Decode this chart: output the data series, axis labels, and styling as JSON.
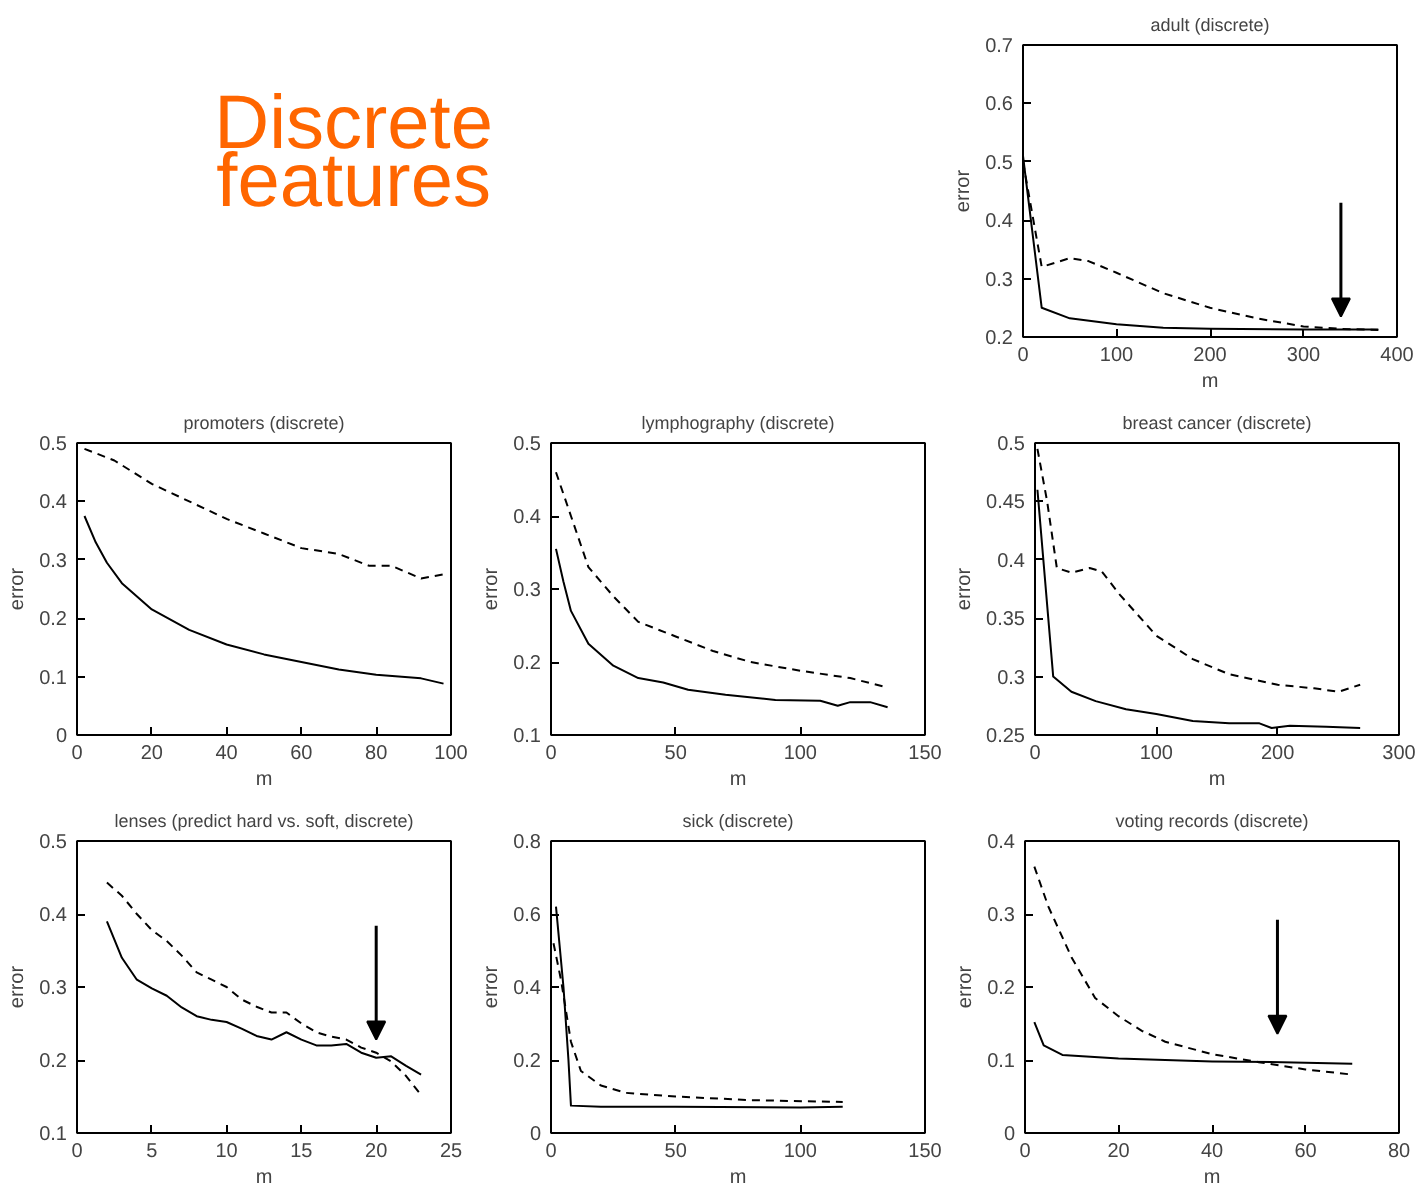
{
  "chart_data": [
    {
      "type": "other",
      "annotations": [
        "Discrete",
        "features"
      ],
      "color": "#ff6600"
    },
    {
      "type": "line",
      "title": "adult (discrete)",
      "xlabel": "m",
      "ylabel": "error",
      "xlim": [
        0,
        400
      ],
      "ylim": [
        0.2,
        0.7
      ],
      "xticks": [
        0,
        100,
        200,
        300,
        400
      ],
      "yticks": [
        0.2,
        0.3,
        0.4,
        0.5,
        0.6,
        0.7
      ],
      "series": [
        {
          "color": "#000000",
          "line_style": "solid",
          "x": [
            0,
            20,
            50,
            100,
            150,
            200,
            300,
            380
          ],
          "values": [
            0.51,
            0.25,
            0.232,
            0.222,
            0.216,
            0.214,
            0.213,
            0.213
          ]
        },
        {
          "color": "#000000",
          "line_style": "dashed",
          "x": [
            0,
            20,
            50,
            70,
            100,
            150,
            200,
            250,
            300,
            340,
            380
          ],
          "values": [
            0.5,
            0.32,
            0.335,
            0.33,
            0.31,
            0.275,
            0.25,
            0.232,
            0.218,
            0.214,
            0.212
          ]
        }
      ]
    },
    {
      "type": "line",
      "title": "promoters (discrete)",
      "xlabel": "m",
      "ylabel": "error",
      "xlim": [
        0,
        100
      ],
      "ylim": [
        0,
        0.5
      ],
      "xticks": [
        0,
        20,
        40,
        60,
        80,
        100
      ],
      "yticks": [
        0,
        0.1,
        0.2,
        0.3,
        0.4,
        0.5
      ],
      "series": [
        {
          "color": "#000000",
          "line_style": "solid",
          "x": [
            2,
            5,
            8,
            12,
            20,
            30,
            40,
            50,
            60,
            70,
            80,
            92,
            98
          ],
          "values": [
            0.375,
            0.33,
            0.295,
            0.26,
            0.215,
            0.18,
            0.155,
            0.138,
            0.125,
            0.112,
            0.103,
            0.097,
            0.088
          ]
        },
        {
          "color": "#000000",
          "line_style": "dashed",
          "x": [
            2,
            10,
            20,
            30,
            40,
            50,
            60,
            70,
            78,
            84,
            92,
            98
          ],
          "values": [
            0.49,
            0.47,
            0.43,
            0.4,
            0.37,
            0.345,
            0.32,
            0.31,
            0.29,
            0.29,
            0.268,
            0.275
          ]
        }
      ]
    },
    {
      "type": "line",
      "title": "lymphography (discrete)",
      "xlabel": "m",
      "ylabel": "error",
      "xlim": [
        0,
        150
      ],
      "ylim": [
        0.1,
        0.5
      ],
      "xticks": [
        0,
        50,
        100,
        150
      ],
      "yticks": [
        0.1,
        0.2,
        0.3,
        0.4,
        0.5
      ],
      "series": [
        {
          "color": "#000000",
          "line_style": "solid",
          "x": [
            2,
            5,
            8,
            15,
            25,
            35,
            45,
            55,
            70,
            90,
            108,
            115,
            120,
            128,
            135
          ],
          "values": [
            0.355,
            0.31,
            0.27,
            0.225,
            0.195,
            0.178,
            0.172,
            0.162,
            0.155,
            0.148,
            0.147,
            0.14,
            0.145,
            0.145,
            0.138
          ]
        },
        {
          "color": "#000000",
          "line_style": "dashed",
          "x": [
            2,
            8,
            15,
            25,
            35,
            50,
            65,
            80,
            100,
            120,
            135
          ],
          "values": [
            0.46,
            0.4,
            0.33,
            0.29,
            0.255,
            0.235,
            0.215,
            0.2,
            0.188,
            0.178,
            0.165
          ]
        }
      ]
    },
    {
      "type": "line",
      "title": "breast cancer (discrete)",
      "xlabel": "m",
      "ylabel": "error",
      "xlim": [
        0,
        300
      ],
      "ylim": [
        0.25,
        0.5
      ],
      "xticks": [
        0,
        100,
        200,
        300
      ],
      "yticks": [
        0.25,
        0.3,
        0.35,
        0.4,
        0.45,
        0.5
      ],
      "series": [
        {
          "color": "#000000",
          "line_style": "solid",
          "x": [
            2,
            15,
            30,
            50,
            75,
            100,
            130,
            160,
            185,
            195,
            210,
            240,
            268
          ],
          "values": [
            0.46,
            0.3,
            0.287,
            0.279,
            0.272,
            0.268,
            0.262,
            0.26,
            0.26,
            0.256,
            0.258,
            0.257,
            0.256
          ]
        },
        {
          "color": "#000000",
          "line_style": "dashed",
          "x": [
            2,
            10,
            18,
            30,
            45,
            55,
            70,
            100,
            130,
            160,
            200,
            230,
            250,
            268
          ],
          "values": [
            0.495,
            0.45,
            0.393,
            0.389,
            0.393,
            0.39,
            0.37,
            0.335,
            0.315,
            0.302,
            0.293,
            0.29,
            0.287,
            0.293
          ]
        }
      ]
    },
    {
      "type": "line",
      "title": "lenses (predict hard vs. soft, discrete)",
      "xlabel": "m",
      "ylabel": "error",
      "xlim": [
        0,
        25
      ],
      "ylim": [
        0.1,
        0.5
      ],
      "xticks": [
        0,
        5,
        10,
        15,
        20,
        25
      ],
      "yticks": [
        0.1,
        0.2,
        0.3,
        0.4,
        0.5
      ],
      "series": [
        {
          "color": "#000000",
          "line_style": "solid",
          "x": [
            2,
            3,
            4,
            5,
            6,
            7,
            8,
            9,
            10,
            11,
            12,
            13,
            14,
            15,
            16,
            17,
            18,
            19,
            20,
            21,
            22,
            23
          ],
          "values": [
            0.39,
            0.34,
            0.31,
            0.298,
            0.288,
            0.272,
            0.26,
            0.255,
            0.252,
            0.243,
            0.233,
            0.228,
            0.238,
            0.228,
            0.22,
            0.22,
            0.222,
            0.21,
            0.203,
            0.205,
            0.192,
            0.18
          ]
        },
        {
          "color": "#000000",
          "line_style": "dashed",
          "x": [
            2,
            3,
            4,
            5,
            6,
            7,
            8,
            9,
            10,
            11,
            12,
            13,
            14,
            15,
            16,
            17,
            18,
            19,
            20,
            21,
            22,
            23
          ],
          "values": [
            0.443,
            0.425,
            0.4,
            0.378,
            0.363,
            0.343,
            0.32,
            0.31,
            0.3,
            0.283,
            0.273,
            0.265,
            0.265,
            0.25,
            0.238,
            0.232,
            0.228,
            0.217,
            0.21,
            0.198,
            0.178,
            0.152
          ]
        }
      ]
    },
    {
      "type": "line",
      "title": "sick (discrete)",
      "xlabel": "m",
      "ylabel": "error",
      "xlim": [
        0,
        150
      ],
      "ylim": [
        0,
        0.8
      ],
      "xticks": [
        0,
        50,
        100,
        150
      ],
      "yticks": [
        0,
        0.2,
        0.4,
        0.6,
        0.8
      ],
      "series": [
        {
          "color": "#000000",
          "line_style": "solid",
          "x": [
            2,
            5,
            7,
            8,
            20,
            50,
            100,
            117
          ],
          "values": [
            0.62,
            0.4,
            0.2,
            0.075,
            0.072,
            0.072,
            0.07,
            0.072
          ]
        },
        {
          "color": "#000000",
          "line_style": "dashed",
          "x": [
            1,
            4,
            8,
            12,
            20,
            30,
            50,
            80,
            117
          ],
          "values": [
            0.52,
            0.42,
            0.25,
            0.17,
            0.13,
            0.11,
            0.1,
            0.09,
            0.085
          ]
        }
      ]
    },
    {
      "type": "line",
      "title": "voting records (discrete)",
      "xlabel": "m",
      "ylabel": "error",
      "xlim": [
        0,
        80
      ],
      "ylim": [
        0,
        0.4
      ],
      "xticks": [
        0,
        20,
        40,
        60,
        80
      ],
      "yticks": [
        0,
        0.1,
        0.2,
        0.3,
        0.4
      ],
      "series": [
        {
          "color": "#000000",
          "line_style": "solid",
          "x": [
            2,
            4,
            8,
            20,
            40,
            55,
            70
          ],
          "values": [
            0.152,
            0.12,
            0.107,
            0.102,
            0.098,
            0.097,
            0.095
          ]
        },
        {
          "color": "#000000",
          "line_style": "dashed",
          "x": [
            2,
            5,
            10,
            15,
            20,
            25,
            30,
            40,
            50,
            60,
            70
          ],
          "values": [
            0.365,
            0.31,
            0.24,
            0.185,
            0.16,
            0.14,
            0.125,
            0.108,
            0.097,
            0.087,
            0.08
          ]
        }
      ]
    }
  ]
}
